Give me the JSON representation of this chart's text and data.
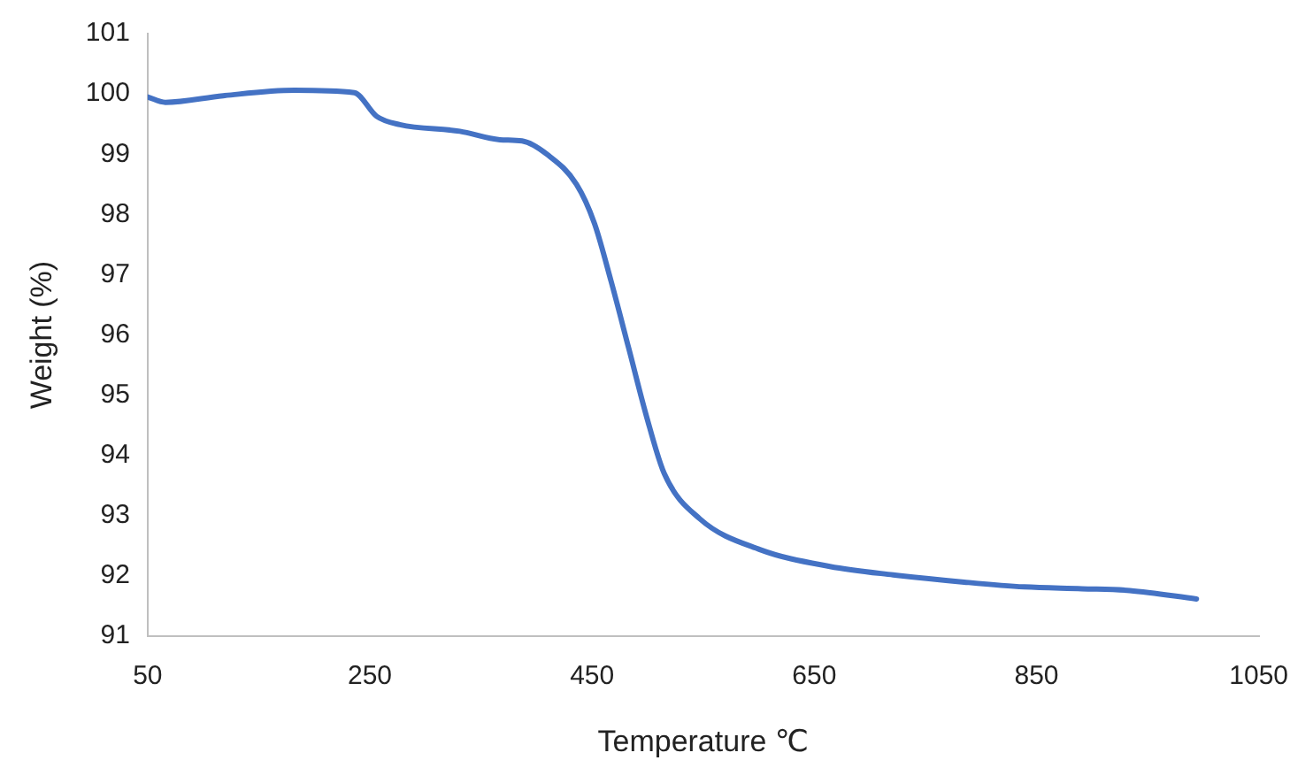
{
  "chart_data": {
    "type": "line",
    "xlabel": "Temperature ℃",
    "ylabel": "Weight (%)",
    "x": [
      50,
      66,
      118,
      182,
      236,
      256,
      277,
      331,
      367,
      387,
      410,
      436,
      452,
      467,
      483,
      499,
      515,
      547,
      601,
      664,
      721,
      785,
      839,
      891,
      934,
      994
    ],
    "series": [
      {
        "color": "#4472c4",
        "values": [
          99.95,
          99.86,
          99.97,
          100.06,
          100.02,
          99.63,
          99.49,
          99.38,
          99.24,
          99.22,
          98.99,
          98.5,
          97.86,
          96.9,
          95.78,
          94.65,
          93.7,
          92.95,
          92.44,
          92.16,
          92.02,
          91.9,
          91.82,
          91.79,
          91.76,
          91.62
        ]
      }
    ],
    "xlim": [
      50,
      1050
    ],
    "xticks": [
      50,
      250,
      450,
      650,
      850,
      1050
    ],
    "ylim": [
      91,
      101
    ],
    "yticks": [
      91,
      92,
      93,
      94,
      95,
      96,
      97,
      98,
      99,
      100,
      101
    ],
    "grid": false,
    "legend": false,
    "marker": "none",
    "line_style": "solid"
  }
}
